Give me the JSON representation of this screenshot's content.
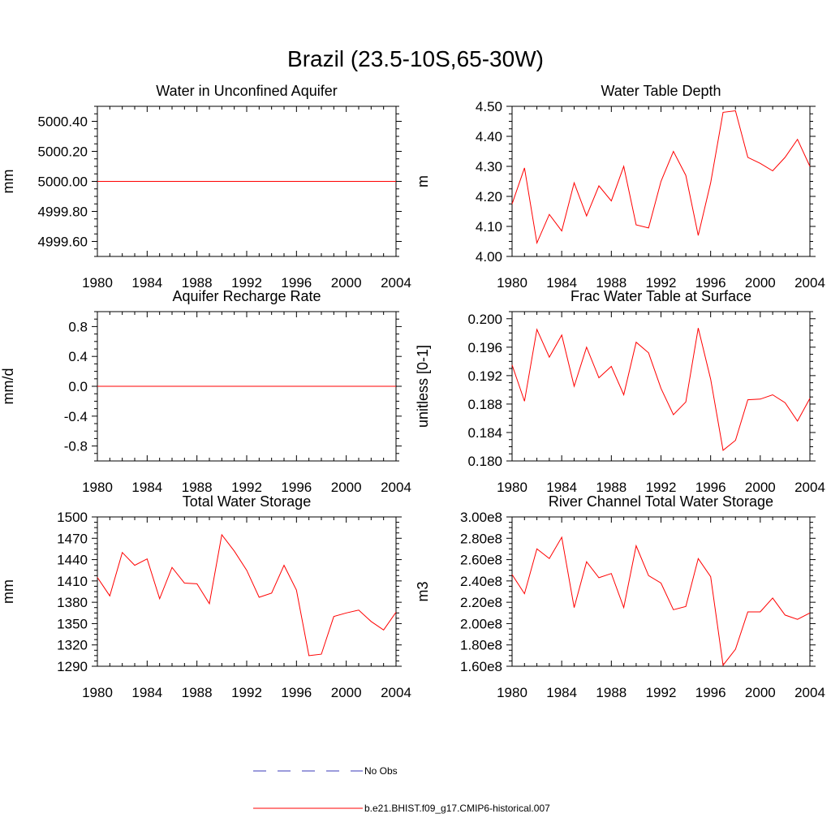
{
  "figure": {
    "title": "Brazil (23.5-10S,65-30W)"
  },
  "chart_data": [
    {
      "type": "line",
      "title": "Water in Unconfined Aquifer",
      "ylabel": "mm",
      "xlim": [
        1980,
        2004
      ],
      "ylim": [
        4999.5,
        5000.5
      ],
      "xticks": [
        1980,
        1984,
        1988,
        1992,
        1996,
        2000,
        2004
      ],
      "yticks": [
        4999.6,
        4999.8,
        5000.0,
        5000.2,
        5000.4
      ],
      "ytick_labels": [
        "4999.60",
        "4999.80",
        "5000.00",
        "5000.20",
        "5000.40"
      ],
      "x": [
        1980,
        1981,
        1982,
        1983,
        1984,
        1985,
        1986,
        1987,
        1988,
        1989,
        1990,
        1991,
        1992,
        1993,
        1994,
        1995,
        1996,
        1997,
        1998,
        1999,
        2000,
        2001,
        2002,
        2003,
        2004
      ],
      "series": [
        {
          "values": [
            5000,
            5000,
            5000,
            5000,
            5000,
            5000,
            5000,
            5000,
            5000,
            5000,
            5000,
            5000,
            5000,
            5000,
            5000,
            5000,
            5000,
            5000,
            5000,
            5000,
            5000,
            5000,
            5000,
            5000,
            5000
          ]
        }
      ]
    },
    {
      "type": "line",
      "title": "Water Table Depth",
      "ylabel": "m",
      "xlim": [
        1980,
        2004
      ],
      "ylim": [
        4.0,
        4.5
      ],
      "xticks": [
        1980,
        1984,
        1988,
        1992,
        1996,
        2000,
        2004
      ],
      "yticks": [
        4.0,
        4.1,
        4.2,
        4.3,
        4.4,
        4.5
      ],
      "ytick_labels": [
        "4.00",
        "4.10",
        "4.20",
        "4.30",
        "4.40",
        "4.50"
      ],
      "x": [
        1980,
        1981,
        1982,
        1983,
        1984,
        1985,
        1986,
        1987,
        1988,
        1989,
        1990,
        1991,
        1992,
        1993,
        1994,
        1995,
        1996,
        1997,
        1998,
        1999,
        2000,
        2001,
        2002,
        2003,
        2004
      ],
      "series": [
        {
          "values": [
            4.175,
            4.295,
            4.045,
            4.14,
            4.085,
            4.245,
            4.135,
            4.235,
            4.185,
            4.3,
            4.105,
            4.095,
            4.25,
            4.35,
            4.27,
            4.07,
            4.245,
            4.48,
            4.485,
            4.33,
            4.31,
            4.285,
            4.33,
            4.39,
            4.3
          ]
        }
      ]
    },
    {
      "type": "line",
      "title": "Aquifer Recharge Rate",
      "ylabel": "mm/d",
      "xlim": [
        1980,
        2004
      ],
      "ylim": [
        -1.0,
        1.0
      ],
      "xticks": [
        1980,
        1984,
        1988,
        1992,
        1996,
        2000,
        2004
      ],
      "yticks": [
        -0.8,
        -0.4,
        0.0,
        0.4,
        0.8
      ],
      "ytick_labels": [
        "-0.8",
        "-0.4",
        "0.0",
        "0.4",
        "0.8"
      ],
      "x": [
        1980,
        1981,
        1982,
        1983,
        1984,
        1985,
        1986,
        1987,
        1988,
        1989,
        1990,
        1991,
        1992,
        1993,
        1994,
        1995,
        1996,
        1997,
        1998,
        1999,
        2000,
        2001,
        2002,
        2003,
        2004
      ],
      "series": [
        {
          "values": [
            0,
            0,
            0,
            0,
            0,
            0,
            0,
            0,
            0,
            0,
            0,
            0,
            0,
            0,
            0,
            0,
            0,
            0,
            0,
            0,
            0,
            0,
            0,
            0,
            0
          ]
        }
      ]
    },
    {
      "type": "line",
      "title": "Frac Water Table at Surface",
      "ylabel": "unitless [0-1]",
      "xlim": [
        1980,
        2004
      ],
      "ylim": [
        0.18,
        0.201
      ],
      "xticks": [
        1980,
        1984,
        1988,
        1992,
        1996,
        2000,
        2004
      ],
      "yticks": [
        0.18,
        0.184,
        0.188,
        0.192,
        0.196,
        0.2
      ],
      "ytick_labels": [
        "0.180",
        "0.184",
        "0.188",
        "0.192",
        "0.196",
        "0.200"
      ],
      "x": [
        1980,
        1981,
        1982,
        1983,
        1984,
        1985,
        1986,
        1987,
        1988,
        1989,
        1990,
        1991,
        1992,
        1993,
        1994,
        1995,
        1996,
        1997,
        1998,
        1999,
        2000,
        2001,
        2002,
        2003,
        2004
      ],
      "series": [
        {
          "values": [
            0.1935,
            0.1884,
            0.1985,
            0.1946,
            0.1977,
            0.1905,
            0.196,
            0.1917,
            0.1933,
            0.1893,
            0.1967,
            0.1952,
            0.1902,
            0.1865,
            0.1883,
            0.1987,
            0.1915,
            0.1815,
            0.1829,
            0.1886,
            0.1887,
            0.1893,
            0.1882,
            0.1856,
            0.1888
          ]
        }
      ]
    },
    {
      "type": "line",
      "title": "Total Water Storage",
      "ylabel": "mm",
      "xlim": [
        1980,
        2004
      ],
      "ylim": [
        1290,
        1500
      ],
      "xticks": [
        1980,
        1984,
        1988,
        1992,
        1996,
        2000,
        2004
      ],
      "yticks": [
        1290,
        1320,
        1350,
        1380,
        1410,
        1440,
        1470,
        1500
      ],
      "ytick_labels": [
        "1290",
        "1320",
        "1350",
        "1380",
        "1410",
        "1440",
        "1470",
        "1500"
      ],
      "x": [
        1980,
        1981,
        1982,
        1983,
        1984,
        1985,
        1986,
        1987,
        1988,
        1989,
        1990,
        1991,
        1992,
        1993,
        1994,
        1995,
        1996,
        1997,
        1998,
        1999,
        2000,
        2001,
        2002,
        2003,
        2004
      ],
      "series": [
        {
          "values": [
            1415,
            1389,
            1450,
            1432,
            1441,
            1385,
            1429,
            1407,
            1406,
            1378,
            1475,
            1452,
            1425,
            1387,
            1393,
            1432,
            1397,
            1305,
            1307,
            1360,
            1365,
            1369,
            1353,
            1341,
            1366
          ]
        }
      ]
    },
    {
      "type": "line",
      "title": "River Channel Total Water Storage",
      "ylabel": "m3",
      "xlim": [
        1980,
        2004
      ],
      "ylim": [
        160000000.0,
        300000000.0
      ],
      "xticks": [
        1980,
        1984,
        1988,
        1992,
        1996,
        2000,
        2004
      ],
      "yticks": [
        160000000.0,
        180000000.0,
        200000000.0,
        220000000.0,
        240000000.0,
        260000000.0,
        280000000.0,
        300000000.0
      ],
      "ytick_labels": [
        "1.60e8",
        "1.80e8",
        "2.00e8",
        "2.20e8",
        "2.40e8",
        "2.60e8",
        "2.80e8",
        "3.00e8"
      ],
      "x": [
        1980,
        1981,
        1982,
        1983,
        1984,
        1985,
        1986,
        1987,
        1988,
        1989,
        1990,
        1991,
        1992,
        1993,
        1994,
        1995,
        1996,
        1997,
        1998,
        1999,
        2000,
        2001,
        2002,
        2003,
        2004
      ],
      "series": [
        {
          "values": [
            246000000.0,
            228000000.0,
            270000000.0,
            261000000.0,
            281000000.0,
            215000000.0,
            258000000.0,
            243000000.0,
            247000000.0,
            215000000.0,
            273000000.0,
            245000000.0,
            238000000.0,
            213000000.0,
            216000000.0,
            261000000.0,
            244000000.0,
            161000000.0,
            176000000.0,
            211000000.0,
            211000000.0,
            224000000.0,
            208000000.0,
            204000000.0,
            210000000.0
          ]
        }
      ]
    }
  ],
  "legend": {
    "entries": [
      {
        "label": "No Obs",
        "color": "#3a3ab8",
        "dash": "dashed"
      },
      {
        "label": "b.e21.BHIST.f09_g17.CMIP6-historical.007",
        "color": "#ff0000",
        "dash": "solid"
      }
    ]
  }
}
